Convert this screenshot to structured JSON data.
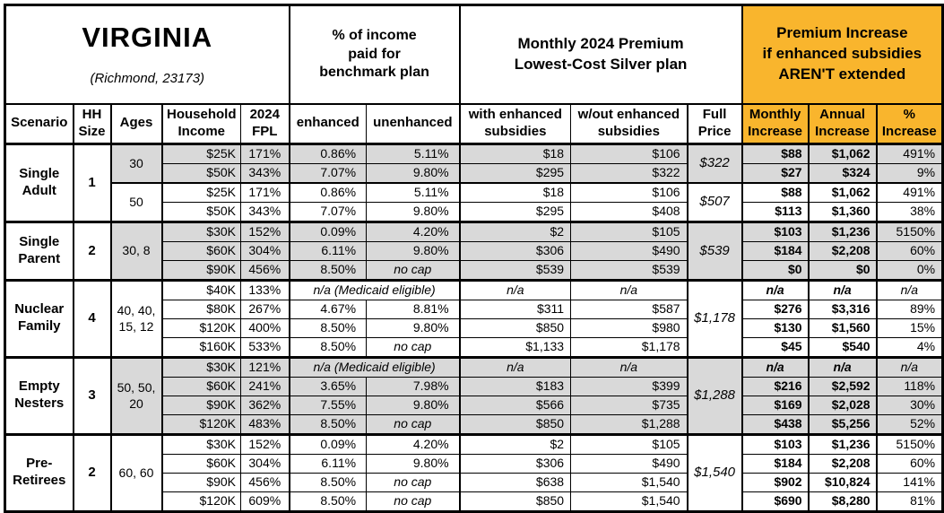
{
  "title": {
    "state": "VIRGINIA",
    "location": "(Richmond, 23173)"
  },
  "colors": {
    "highlight_bg": "#F9B52D",
    "shaded_bg": "#D9D9D9",
    "border": "#000000"
  },
  "header_groups": {
    "benchmark": "% of income\npaid for\nbenchmark plan",
    "premium": "Monthly 2024 Premium\nLowest-Cost Silver plan",
    "increase": "Premium Increase\nif enhanced subsidies\nAREN'T extended"
  },
  "columns": [
    "Scenario",
    "HH\nSize",
    "Ages",
    "Household\nIncome",
    "2024\nFPL",
    "enhanced",
    "unenhanced",
    "with enhanced\nsubsidies",
    "w/out enhanced\nsubsidies",
    "Full\nPrice",
    "Monthly\nIncrease",
    "Annual\nIncrease",
    "%\nIncrease"
  ],
  "groups": [
    {
      "scenario": "Single Adult",
      "hh_size": "1",
      "subgroups": [
        {
          "ages": "30",
          "shaded": true,
          "full_price": "$322",
          "rows": [
            {
              "income": "$25K",
              "fpl": "171%",
              "enhanced": "0.86%",
              "unenhanced": "5.11%",
              "with_subsidies": "$18",
              "without_subsidies": "$106",
              "monthly_increase": "$88",
              "annual_increase": "$1,062",
              "pct_increase": "491%"
            },
            {
              "income": "$50K",
              "fpl": "343%",
              "enhanced": "7.07%",
              "unenhanced": "9.80%",
              "with_subsidies": "$295",
              "without_subsidies": "$322",
              "monthly_increase": "$27",
              "annual_increase": "$324",
              "pct_increase": "9%"
            }
          ]
        },
        {
          "ages": "50",
          "shaded": false,
          "full_price": "$507",
          "rows": [
            {
              "income": "$25K",
              "fpl": "171%",
              "enhanced": "0.86%",
              "unenhanced": "5.11%",
              "with_subsidies": "$18",
              "without_subsidies": "$106",
              "monthly_increase": "$88",
              "annual_increase": "$1,062",
              "pct_increase": "491%"
            },
            {
              "income": "$50K",
              "fpl": "343%",
              "enhanced": "7.07%",
              "unenhanced": "9.80%",
              "with_subsidies": "$295",
              "without_subsidies": "$408",
              "monthly_increase": "$113",
              "annual_increase": "$1,360",
              "pct_increase": "38%"
            }
          ]
        }
      ]
    },
    {
      "scenario": "Single Parent",
      "hh_size": "2",
      "subgroups": [
        {
          "ages": "30, 8",
          "shaded": true,
          "full_price": "$539",
          "rows": [
            {
              "income": "$30K",
              "fpl": "152%",
              "enhanced": "0.09%",
              "unenhanced": "4.20%",
              "with_subsidies": "$2",
              "without_subsidies": "$105",
              "monthly_increase": "$103",
              "annual_increase": "$1,236",
              "pct_increase": "5150%"
            },
            {
              "income": "$60K",
              "fpl": "304%",
              "enhanced": "6.11%",
              "unenhanced": "9.80%",
              "with_subsidies": "$306",
              "without_subsidies": "$490",
              "monthly_increase": "$184",
              "annual_increase": "$2,208",
              "pct_increase": "60%"
            },
            {
              "income": "$90K",
              "fpl": "456%",
              "enhanced": "8.50%",
              "unenhanced": "no cap",
              "with_subsidies": "$539",
              "without_subsidies": "$539",
              "monthly_increase": "$0",
              "annual_increase": "$0",
              "pct_increase": "0%"
            }
          ]
        }
      ]
    },
    {
      "scenario": "Nuclear Family",
      "hh_size": "4",
      "subgroups": [
        {
          "ages": "40, 40, 15, 12",
          "shaded": false,
          "full_price": "$1,178",
          "rows": [
            {
              "income": "$40K",
              "fpl": "133%",
              "benchmark_note": "n/a (Medicaid eligible)",
              "with_subsidies": "n/a",
              "without_subsidies": "n/a",
              "monthly_increase": "n/a",
              "annual_increase": "n/a",
              "pct_increase": "n/a"
            },
            {
              "income": "$80K",
              "fpl": "267%",
              "enhanced": "4.67%",
              "unenhanced": "8.81%",
              "with_subsidies": "$311",
              "without_subsidies": "$587",
              "monthly_increase": "$276",
              "annual_increase": "$3,316",
              "pct_increase": "89%"
            },
            {
              "income": "$120K",
              "fpl": "400%",
              "enhanced": "8.50%",
              "unenhanced": "9.80%",
              "with_subsidies": "$850",
              "without_subsidies": "$980",
              "monthly_increase": "$130",
              "annual_increase": "$1,560",
              "pct_increase": "15%"
            },
            {
              "income": "$160K",
              "fpl": "533%",
              "enhanced": "8.50%",
              "unenhanced": "no cap",
              "with_subsidies": "$1,133",
              "without_subsidies": "$1,178",
              "monthly_increase": "$45",
              "annual_increase": "$540",
              "pct_increase": "4%"
            }
          ]
        }
      ]
    },
    {
      "scenario": "Empty Nesters",
      "hh_size": "3",
      "subgroups": [
        {
          "ages": "50, 50, 20",
          "shaded": true,
          "full_price": "$1,288",
          "rows": [
            {
              "income": "$30K",
              "fpl": "121%",
              "benchmark_note": "n/a (Medicaid eligible)",
              "with_subsidies": "n/a",
              "without_subsidies": "n/a",
              "monthly_increase": "n/a",
              "annual_increase": "n/a",
              "pct_increase": "n/a"
            },
            {
              "income": "$60K",
              "fpl": "241%",
              "enhanced": "3.65%",
              "unenhanced": "7.98%",
              "with_subsidies": "$183",
              "without_subsidies": "$399",
              "monthly_increase": "$216",
              "annual_increase": "$2,592",
              "pct_increase": "118%"
            },
            {
              "income": "$90K",
              "fpl": "362%",
              "enhanced": "7.55%",
              "unenhanced": "9.80%",
              "with_subsidies": "$566",
              "without_subsidies": "$735",
              "monthly_increase": "$169",
              "annual_increase": "$2,028",
              "pct_increase": "30%"
            },
            {
              "income": "$120K",
              "fpl": "483%",
              "enhanced": "8.50%",
              "unenhanced": "no cap",
              "with_subsidies": "$850",
              "without_subsidies": "$1,288",
              "monthly_increase": "$438",
              "annual_increase": "$5,256",
              "pct_increase": "52%"
            }
          ]
        }
      ]
    },
    {
      "scenario": "Pre-Retirees",
      "hh_size": "2",
      "subgroups": [
        {
          "ages": "60, 60",
          "shaded": false,
          "full_price": "$1,540",
          "rows": [
            {
              "income": "$30K",
              "fpl": "152%",
              "enhanced": "0.09%",
              "unenhanced": "4.20%",
              "with_subsidies": "$2",
              "without_subsidies": "$105",
              "monthly_increase": "$103",
              "annual_increase": "$1,236",
              "pct_increase": "5150%"
            },
            {
              "income": "$60K",
              "fpl": "304%",
              "enhanced": "6.11%",
              "unenhanced": "9.80%",
              "with_subsidies": "$306",
              "without_subsidies": "$490",
              "monthly_increase": "$184",
              "annual_increase": "$2,208",
              "pct_increase": "60%"
            },
            {
              "income": "$90K",
              "fpl": "456%",
              "enhanced": "8.50%",
              "unenhanced": "no cap",
              "with_subsidies": "$638",
              "without_subsidies": "$1,540",
              "monthly_increase": "$902",
              "annual_increase": "$10,824",
              "pct_increase": "141%"
            },
            {
              "income": "$120K",
              "fpl": "609%",
              "enhanced": "8.50%",
              "unenhanced": "no cap",
              "with_subsidies": "$850",
              "without_subsidies": "$1,540",
              "monthly_increase": "$690",
              "annual_increase": "$8,280",
              "pct_increase": "81%"
            }
          ]
        }
      ]
    }
  ]
}
